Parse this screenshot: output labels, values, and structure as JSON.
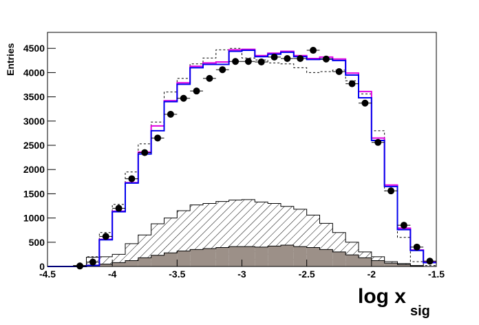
{
  "chart_data": {
    "type": "histogram",
    "x_label": "log x",
    "x_label_subscript": "sig",
    "y_label": "Entries",
    "bins": [
      -4.5,
      -4.4,
      -4.3,
      -4.2,
      -4.1,
      -4.0,
      -3.9,
      -3.8,
      -3.7,
      -3.6,
      -3.5,
      -3.4,
      -3.3,
      -3.2,
      -3.1,
      -3.0,
      -2.9,
      -2.8,
      -2.7,
      -2.6,
      -2.5,
      -2.4,
      -2.3,
      -2.2,
      -2.1,
      -2.0,
      -1.9,
      -1.8,
      -1.7,
      -1.6,
      -1.5
    ],
    "xlim": [
      -4.5,
      -1.5
    ],
    "xticks": [
      -4.5,
      -4,
      -3.5,
      -3,
      -2.5,
      -2,
      -1.5
    ],
    "ylim": [
      0,
      4830
    ],
    "yticks": [
      0,
      500,
      1000,
      1500,
      2000,
      2500,
      3000,
      3500,
      4000,
      4500
    ],
    "series": [
      {
        "style": "dashed",
        "color": "#000000",
        "values": [
          0,
          0,
          0,
          200,
          700,
          1280,
          1950,
          2530,
          2980,
          3600,
          3880,
          4180,
          4300,
          4470,
          4500,
          4300,
          4260,
          4200,
          4180,
          4100,
          4000,
          4020,
          4050,
          3830,
          3560,
          2800,
          1560,
          600,
          100,
          20
        ]
      },
      {
        "style": "hatched",
        "color": "#000000",
        "values": [
          0,
          0,
          20,
          190,
          200,
          250,
          470,
          650,
          880,
          1000,
          1150,
          1270,
          1300,
          1340,
          1370,
          1380,
          1330,
          1300,
          1240,
          1180,
          1060,
          890,
          700,
          500,
          300,
          200,
          100,
          60,
          20,
          0
        ]
      },
      {
        "style": "filled",
        "color": "#9c9088",
        "values": [
          0,
          0,
          0,
          30,
          50,
          80,
          120,
          180,
          230,
          280,
          320,
          350,
          370,
          390,
          410,
          410,
          400,
          420,
          440,
          410,
          390,
          350,
          300,
          240,
          180,
          120,
          70,
          40,
          10,
          0
        ]
      },
      {
        "style": "step",
        "color": "#e000e0",
        "values": [
          0,
          0,
          0,
          20,
          560,
          1140,
          1730,
          2360,
          2900,
          3420,
          3790,
          4130,
          4200,
          4220,
          4470,
          4480,
          4350,
          4400,
          4440,
          4350,
          4290,
          4320,
          4280,
          3990,
          3610,
          2650,
          1680,
          790,
          340,
          90
        ]
      },
      {
        "style": "step",
        "color": "#0000ee",
        "values": [
          0,
          0,
          0,
          20,
          550,
          1130,
          1720,
          2320,
          2800,
          3400,
          3760,
          4100,
          4170,
          4170,
          4440,
          4460,
          4330,
          4380,
          4420,
          4330,
          4270,
          4280,
          4250,
          3950,
          3480,
          2600,
          1650,
          760,
          330,
          80
        ]
      },
      {
        "style": "points",
        "color": "#000000",
        "values": [
          null,
          null,
          10,
          90,
          620,
          1200,
          1810,
          2350,
          2650,
          3140,
          3470,
          3620,
          3880,
          4060,
          4230,
          4230,
          4220,
          4320,
          4290,
          4290,
          4460,
          4280,
          4020,
          3770,
          3370,
          2560,
          1560,
          850,
          400,
          110
        ]
      }
    ]
  }
}
